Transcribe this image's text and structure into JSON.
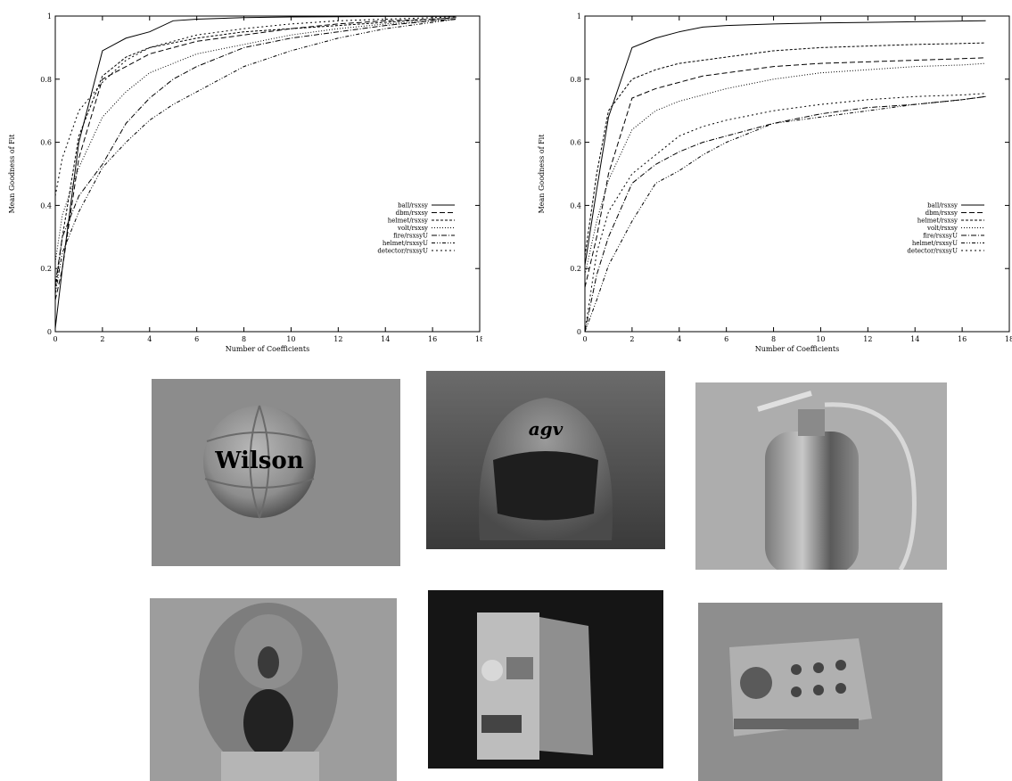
{
  "chart_data": [
    {
      "type": "line",
      "xlabel": "Number of Coefficients",
      "ylabel": "Mean Goodness of Fit",
      "xlim": [
        0,
        18
      ],
      "ylim": [
        0,
        1
      ],
      "xticks": [
        0,
        2,
        4,
        6,
        8,
        10,
        12,
        14,
        16,
        18
      ],
      "yticks": [
        0,
        0.2,
        0.4,
        0.6,
        0.8,
        1
      ],
      "grid": false,
      "legend_position": "center-right",
      "series": [
        {
          "name": "ball/rsxsy",
          "dash": "",
          "x": [
            0,
            0.3,
            1,
            2,
            3,
            4,
            5,
            6,
            8,
            10,
            12,
            14,
            16,
            17
          ],
          "y": [
            0.01,
            0.2,
            0.6,
            0.89,
            0.93,
            0.95,
            0.985,
            0.99,
            0.995,
            0.997,
            0.998,
            0.999,
            0.999,
            0.999
          ]
        },
        {
          "name": "dbm/rsxsy",
          "dash": "6,3",
          "x": [
            0,
            0.3,
            1,
            2,
            3,
            4,
            6,
            8,
            10,
            12,
            14,
            16,
            17
          ],
          "y": [
            0.1,
            0.2,
            0.55,
            0.8,
            0.84,
            0.88,
            0.92,
            0.94,
            0.96,
            0.975,
            0.985,
            0.99,
            0.995
          ]
        },
        {
          "name": "helmet/rsxsy",
          "dash": "3,2",
          "x": [
            0,
            0.3,
            1,
            2,
            3,
            4,
            6,
            8,
            10,
            12,
            14,
            16,
            17
          ],
          "y": [
            0.13,
            0.3,
            0.62,
            0.81,
            0.87,
            0.9,
            0.93,
            0.95,
            0.96,
            0.97,
            0.98,
            0.99,
            0.995
          ]
        },
        {
          "name": "volt/rsxsy",
          "dash": "1,2",
          "x": [
            0,
            0.3,
            1,
            2,
            3,
            4,
            6,
            8,
            10,
            12,
            14,
            16,
            17
          ],
          "y": [
            0.22,
            0.37,
            0.52,
            0.68,
            0.76,
            0.82,
            0.88,
            0.91,
            0.94,
            0.96,
            0.975,
            0.985,
            0.99
          ]
        },
        {
          "name": "fire/rsxsyU",
          "dash": "6,2,1,2",
          "x": [
            0,
            0.3,
            1,
            2,
            3,
            4,
            5,
            6,
            8,
            10,
            12,
            14,
            16,
            17
          ],
          "y": [
            0.15,
            0.3,
            0.43,
            0.53,
            0.66,
            0.74,
            0.8,
            0.84,
            0.9,
            0.93,
            0.95,
            0.97,
            0.985,
            0.99
          ]
        },
        {
          "name": "helmet/rsxsyU",
          "dash": "4,2,1,2,1,2",
          "x": [
            0,
            0.3,
            1,
            2,
            3,
            4,
            5,
            6,
            8,
            10,
            12,
            14,
            16,
            17
          ],
          "y": [
            0.12,
            0.25,
            0.38,
            0.52,
            0.6,
            0.67,
            0.72,
            0.76,
            0.84,
            0.89,
            0.93,
            0.96,
            0.98,
            0.99
          ]
        },
        {
          "name": "detector/rsxsyU",
          "dash": "2,3",
          "x": [
            0,
            0.3,
            1,
            2,
            3,
            4,
            6,
            8,
            10,
            12,
            14,
            16,
            17
          ],
          "y": [
            0.43,
            0.55,
            0.7,
            0.79,
            0.86,
            0.9,
            0.94,
            0.96,
            0.975,
            0.985,
            0.99,
            0.995,
            0.998
          ]
        }
      ]
    },
    {
      "type": "line",
      "xlabel": "Number of Coefficients",
      "ylabel": "Mean Goodness of Fit",
      "xlim": [
        0,
        18
      ],
      "ylim": [
        0,
        1
      ],
      "xticks": [
        0,
        2,
        4,
        6,
        8,
        10,
        12,
        14,
        16,
        18
      ],
      "yticks": [
        0,
        0.2,
        0.4,
        0.6,
        0.8,
        1
      ],
      "grid": false,
      "legend_position": "center-right",
      "series": [
        {
          "name": "ball/rsxsy",
          "dash": "",
          "x": [
            0,
            0.5,
            1,
            2,
            3,
            4,
            5,
            6,
            8,
            10,
            12,
            14,
            16,
            17
          ],
          "y": [
            0.21,
            0.45,
            0.68,
            0.9,
            0.93,
            0.95,
            0.965,
            0.97,
            0.975,
            0.978,
            0.98,
            0.982,
            0.984,
            0.985
          ]
        },
        {
          "name": "dbm/rsxsy",
          "dash": "6,3",
          "x": [
            0,
            0.5,
            1,
            2,
            3,
            4,
            5,
            6,
            8,
            10,
            12,
            14,
            16,
            17
          ],
          "y": [
            0.14,
            0.3,
            0.5,
            0.74,
            0.77,
            0.79,
            0.81,
            0.82,
            0.84,
            0.85,
            0.855,
            0.86,
            0.865,
            0.868
          ]
        },
        {
          "name": "helmet/rsxsy",
          "dash": "3,2",
          "x": [
            0,
            0.5,
            1,
            2,
            3,
            4,
            6,
            8,
            10,
            12,
            14,
            16,
            17
          ],
          "y": [
            0.24,
            0.5,
            0.7,
            0.8,
            0.83,
            0.85,
            0.87,
            0.89,
            0.9,
            0.905,
            0.91,
            0.913,
            0.915
          ]
        },
        {
          "name": "volt/rsxsy",
          "dash": "1,2",
          "x": [
            0,
            0.5,
            1,
            2,
            3,
            4,
            6,
            8,
            10,
            12,
            14,
            16,
            17
          ],
          "y": [
            0.18,
            0.35,
            0.48,
            0.64,
            0.7,
            0.73,
            0.77,
            0.8,
            0.82,
            0.83,
            0.84,
            0.845,
            0.85
          ]
        },
        {
          "name": "fire/rsxsyU",
          "dash": "6,2,1,2",
          "x": [
            0,
            0.5,
            1,
            2,
            3,
            4,
            5,
            6,
            8,
            10,
            12,
            14,
            16,
            17
          ],
          "y": [
            0.0,
            0.18,
            0.3,
            0.47,
            0.53,
            0.57,
            0.6,
            0.62,
            0.66,
            0.69,
            0.71,
            0.72,
            0.735,
            0.745
          ]
        },
        {
          "name": "helmet/rsxsyU",
          "dash": "4,2,1,2,1,2",
          "x": [
            0,
            0.5,
            1,
            2,
            3,
            4,
            5,
            6,
            8,
            10,
            12,
            14,
            16,
            17
          ],
          "y": [
            0.0,
            0.1,
            0.21,
            0.35,
            0.47,
            0.51,
            0.56,
            0.6,
            0.66,
            0.68,
            0.7,
            0.72,
            0.735,
            0.745
          ]
        },
        {
          "name": "detector/rsxsyU",
          "dash": "2,3",
          "x": [
            0,
            0.5,
            1,
            2,
            3,
            4,
            5,
            6,
            8,
            10,
            12,
            14,
            16,
            17
          ],
          "y": [
            0.0,
            0.25,
            0.38,
            0.5,
            0.56,
            0.62,
            0.65,
            0.67,
            0.7,
            0.72,
            0.735,
            0.745,
            0.75,
            0.755
          ]
        }
      ]
    }
  ],
  "photos": [
    {
      "name": "photo-basketball",
      "label": "Wilson"
    },
    {
      "name": "photo-motorcycle-helmet",
      "label": "agv"
    },
    {
      "name": "photo-fire-extinguisher",
      "label": ""
    },
    {
      "name": "photo-toy-figure",
      "label": ""
    },
    {
      "name": "photo-voltmeter",
      "label": ""
    },
    {
      "name": "photo-detector-panel",
      "label": ""
    }
  ]
}
